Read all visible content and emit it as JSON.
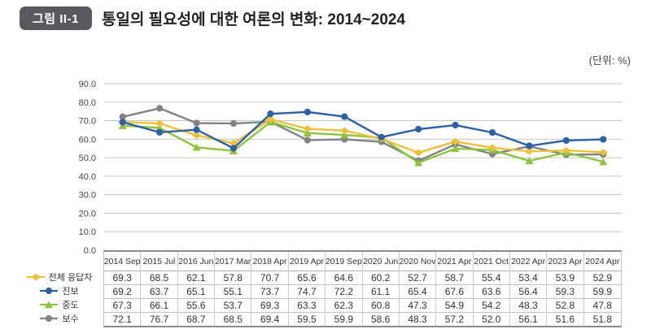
{
  "figure": {
    "badge": "그림 II-1",
    "title": "통일의 필요성에 대한 여론의 변화: 2014~2024",
    "unit": "(단위:  %)"
  },
  "colors": {
    "badge_bg": "#58595b",
    "grid": "#c6c6c6",
    "axis": "#8c8c8c",
    "series_yellow": "#edc13b",
    "series_blue": "#2e61a4",
    "series_green": "#8dc33d",
    "series_gray": "#808285"
  },
  "chart_data": {
    "type": "line",
    "title": "통일의 필요성에 대한 여론의 변화: 2014~2024",
    "unit": "(단위: %)",
    "grid": true,
    "legend_position": "bottom-left",
    "ylim": [
      0,
      90
    ],
    "y_ticks": [
      "0.0",
      "10.0",
      "20.0",
      "30.0",
      "40.0",
      "50.0",
      "60.0",
      "70.0",
      "80.0",
      "90.0"
    ],
    "categories": [
      "2014 Sep",
      "2015 Jul",
      "2016 Jun",
      "2017 Mar",
      "2018 Apr",
      "2019 Apr",
      "2019 Sep",
      "2020 Jun",
      "2020 Nov",
      "2021 Apr",
      "2021 Oct",
      "2022 Apr",
      "2023 Apr",
      "2024 Apr"
    ],
    "series": [
      {
        "name": "전체 응답자",
        "marker": "diamond",
        "color": "#edc13b",
        "values": [
          69.3,
          68.5,
          62.1,
          57.8,
          70.7,
          65.6,
          64.6,
          60.2,
          52.7,
          58.7,
          55.4,
          53.4,
          53.9,
          52.9
        ]
      },
      {
        "name": "진보",
        "marker": "circle",
        "color": "#2e61a4",
        "values": [
          69.2,
          63.7,
          65.1,
          55.1,
          73.7,
          74.7,
          72.2,
          61.1,
          65.4,
          67.6,
          63.6,
          56.4,
          59.3,
          59.9
        ]
      },
      {
        "name": "중도",
        "marker": "triangle",
        "color": "#8dc33d",
        "values": [
          67.3,
          66.1,
          55.6,
          53.7,
          69.3,
          63.3,
          62.3,
          60.8,
          47.3,
          54.9,
          54.2,
          48.3,
          52.8,
          47.8
        ]
      },
      {
        "name": "보수",
        "marker": "circle",
        "color": "#808285",
        "values": [
          72.1,
          76.7,
          68.7,
          68.5,
          69.4,
          59.5,
          59.9,
          58.6,
          48.3,
          57.2,
          52.0,
          56.1,
          51.6,
          51.8
        ]
      }
    ]
  }
}
